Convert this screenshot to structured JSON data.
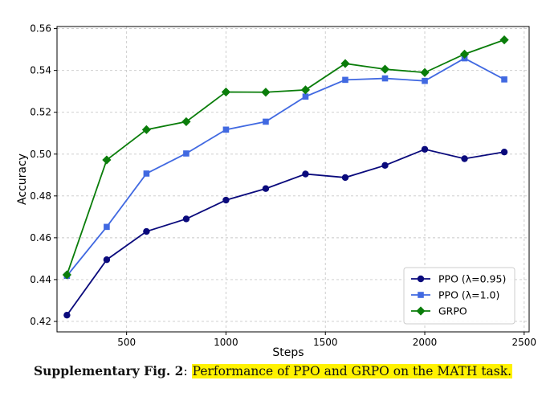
{
  "chart_data": {
    "type": "line",
    "title": "",
    "xlabel": "Steps",
    "ylabel": "Accuracy",
    "xlim": [
      150,
      2525
    ],
    "ylim": [
      0.415,
      0.561
    ],
    "x_ticks": [
      500,
      1000,
      1500,
      2000,
      2500
    ],
    "x_tick_labels": [
      "500",
      "1000",
      "1500",
      "2000",
      "2500"
    ],
    "y_ticks": [
      0.42,
      0.44,
      0.46,
      0.48,
      0.5,
      0.52,
      0.54,
      0.56
    ],
    "y_tick_labels": [
      "0.42",
      "0.44",
      "0.46",
      "0.48",
      "0.50",
      "0.52",
      "0.54",
      "0.56"
    ],
    "grid": true,
    "legend_position": "bottom-right",
    "x": [
      200,
      400,
      600,
      800,
      1000,
      1200,
      1400,
      1600,
      1800,
      2000,
      2200,
      2400
    ],
    "series": [
      {
        "name": "PPO (λ=0.95)",
        "color": "#0a0a7c",
        "marker": "circle",
        "values": [
          0.423,
          0.4495,
          0.463,
          0.469,
          0.478,
          0.4835,
          0.4905,
          0.4888,
          0.4946,
          0.5023,
          0.4978,
          0.501
        ]
      },
      {
        "name": "PPO (λ=1.0)",
        "color": "#4169e1",
        "marker": "square",
        "values": [
          0.4418,
          0.4652,
          0.4907,
          0.5003,
          0.5117,
          0.5155,
          0.5275,
          0.5355,
          0.5362,
          0.535,
          0.5458,
          0.5357
        ]
      },
      {
        "name": "GRPO",
        "color": "#0a7d0a",
        "marker": "diamond",
        "values": [
          0.4423,
          0.4972,
          0.5117,
          0.5155,
          0.5297,
          0.5296,
          0.5307,
          0.5433,
          0.5406,
          0.539,
          0.5478,
          0.5546
        ]
      }
    ]
  },
  "caption": {
    "label": "Supplementary Fig. 2",
    "separator": ": ",
    "text": "Performance of PPO and GRPO on the MATH task."
  }
}
